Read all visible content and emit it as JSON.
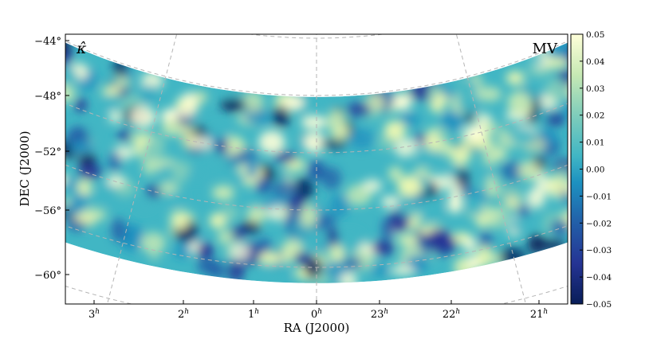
{
  "map": {
    "corner_label_left": "κ̂",
    "corner_label_right": "MV",
    "x_axis_label": "RA (J2000)",
    "y_axis_label": "DEC (J2000)",
    "ra_ticks": [
      {
        "label": "3",
        "sup": "h"
      },
      {
        "label": "2",
        "sup": "h"
      },
      {
        "label": "1",
        "sup": "h"
      },
      {
        "label": "0",
        "sup": "h"
      },
      {
        "label": "23",
        "sup": "h"
      },
      {
        "label": "22",
        "sup": "h"
      },
      {
        "label": "21",
        "sup": "h"
      }
    ],
    "dec_ticks": [
      "−44°",
      "−48°",
      "−52°",
      "−56°",
      "−60°"
    ],
    "dec_range": [
      -44,
      -61
    ],
    "field_dec_range": [
      -48,
      -61
    ],
    "colormap": "YlGnBu_r",
    "colors": {
      "low": "#081d58",
      "mid_low": "#225ea8",
      "mid": "#41b6c4",
      "mid_high": "#c7e9b4",
      "high": "#ffffd9",
      "grid": "#b5b5b5"
    }
  },
  "colorbar": {
    "ticks": [
      "0.05",
      "0.04",
      "0.03",
      "0.02",
      "0.01",
      "0.00",
      "−0.01",
      "−0.02",
      "−0.03",
      "−0.04",
      "−0.05"
    ],
    "min": -0.05,
    "max": 0.05
  }
}
